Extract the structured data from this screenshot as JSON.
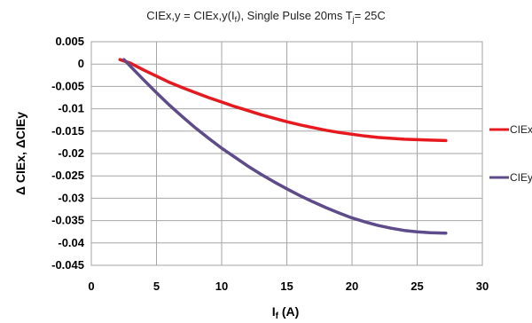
{
  "chart_data": {
    "type": "line",
    "title": {
      "main": "CIEx,y = CIEx,y(I",
      "sub": "f",
      "rest": "), Single Pulse 20ms  T",
      "sub2": "j",
      "end": "= 25C"
    },
    "xlabel": {
      "main": "I",
      "sub": "f",
      "rest": " (A)"
    },
    "ylabel": "Δ CIEx, ΔCIEy",
    "xlim": [
      0,
      30
    ],
    "ylim": [
      -0.045,
      0.005
    ],
    "xticks": [
      "0",
      "5",
      "10",
      "15",
      "20",
      "25",
      "30"
    ],
    "yticks": [
      "0.005",
      "0",
      "-0.005",
      "-0.01",
      "-0.015",
      "-0.02",
      "-0.025",
      "-0.03",
      "-0.035",
      "-0.04",
      "-0.045"
    ],
    "grid": true,
    "legend_position": "right",
    "series": [
      {
        "name": "CIEx",
        "color": "#e8191e",
        "x": [
          2.2,
          3,
          4,
          5,
          6,
          7,
          8,
          9,
          10,
          11,
          12,
          13,
          14,
          15,
          16,
          17,
          18,
          19,
          20,
          21,
          22,
          23,
          24,
          25,
          26,
          27.2
        ],
        "y": [
          0.001,
          0.0002,
          -0.0013,
          -0.0027,
          -0.0041,
          -0.0053,
          -0.0064,
          -0.0075,
          -0.0085,
          -0.0095,
          -0.0104,
          -0.0113,
          -0.0121,
          -0.0129,
          -0.0136,
          -0.0142,
          -0.0148,
          -0.0153,
          -0.0157,
          -0.0161,
          -0.0164,
          -0.0166,
          -0.0168,
          -0.0169,
          -0.017,
          -0.0171
        ]
      },
      {
        "name": "CIEy",
        "color": "#5e4b8b",
        "x": [
          2.5,
          3,
          4,
          5,
          6,
          7,
          8,
          9,
          10,
          11,
          12,
          13,
          14,
          15,
          16,
          17,
          18,
          19,
          20,
          21,
          22,
          23,
          24,
          25,
          26,
          27.2
        ],
        "y": [
          0.001,
          -0.0005,
          -0.0035,
          -0.0064,
          -0.0092,
          -0.0118,
          -0.0143,
          -0.0166,
          -0.0188,
          -0.0208,
          -0.0228,
          -0.0246,
          -0.0263,
          -0.0279,
          -0.0294,
          -0.0308,
          -0.0321,
          -0.0333,
          -0.0344,
          -0.0353,
          -0.0361,
          -0.0367,
          -0.0372,
          -0.0375,
          -0.0377,
          -0.0378
        ]
      }
    ]
  }
}
